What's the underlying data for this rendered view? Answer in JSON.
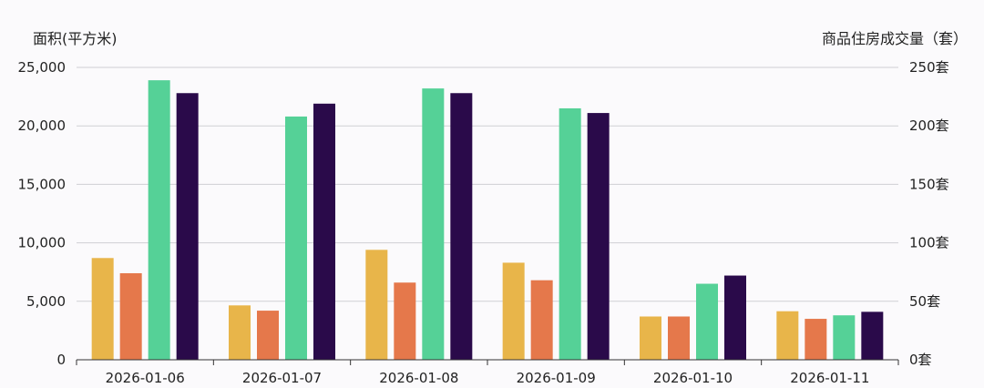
{
  "chart_data": {
    "type": "bar",
    "left_axis_title": "面积(平方米)",
    "right_axis_title": "商品住房成交量（套）",
    "categories": [
      "2026-01-06",
      "2026-01-07",
      "2026-01-08",
      "2026-01-09",
      "2026-01-10",
      "2026-01-11"
    ],
    "left_ticks": [
      "0",
      "5,000",
      "10,000",
      "15,000",
      "20,000",
      "25,000"
    ],
    "right_ticks": [
      "0套",
      "50套",
      "100套",
      "150套",
      "200套",
      "250套"
    ],
    "left_ylim": [
      0,
      25000
    ],
    "right_ylim": [
      0,
      250
    ],
    "grid": true,
    "series": [
      {
        "axis": "left",
        "color": "#e8b54a",
        "values": [
          8700,
          4650,
          9400,
          8300,
          3700,
          4150
        ]
      },
      {
        "axis": "left",
        "color": "#e5784b",
        "values": [
          7400,
          4200,
          6600,
          6800,
          3700,
          3500
        ]
      },
      {
        "axis": "right",
        "color": "#55d197",
        "values": [
          239,
          208,
          232,
          215,
          65,
          38
        ]
      },
      {
        "axis": "right",
        "color": "#2a0a4a",
        "values": [
          228,
          219,
          228,
          211,
          72,
          41
        ]
      }
    ]
  }
}
